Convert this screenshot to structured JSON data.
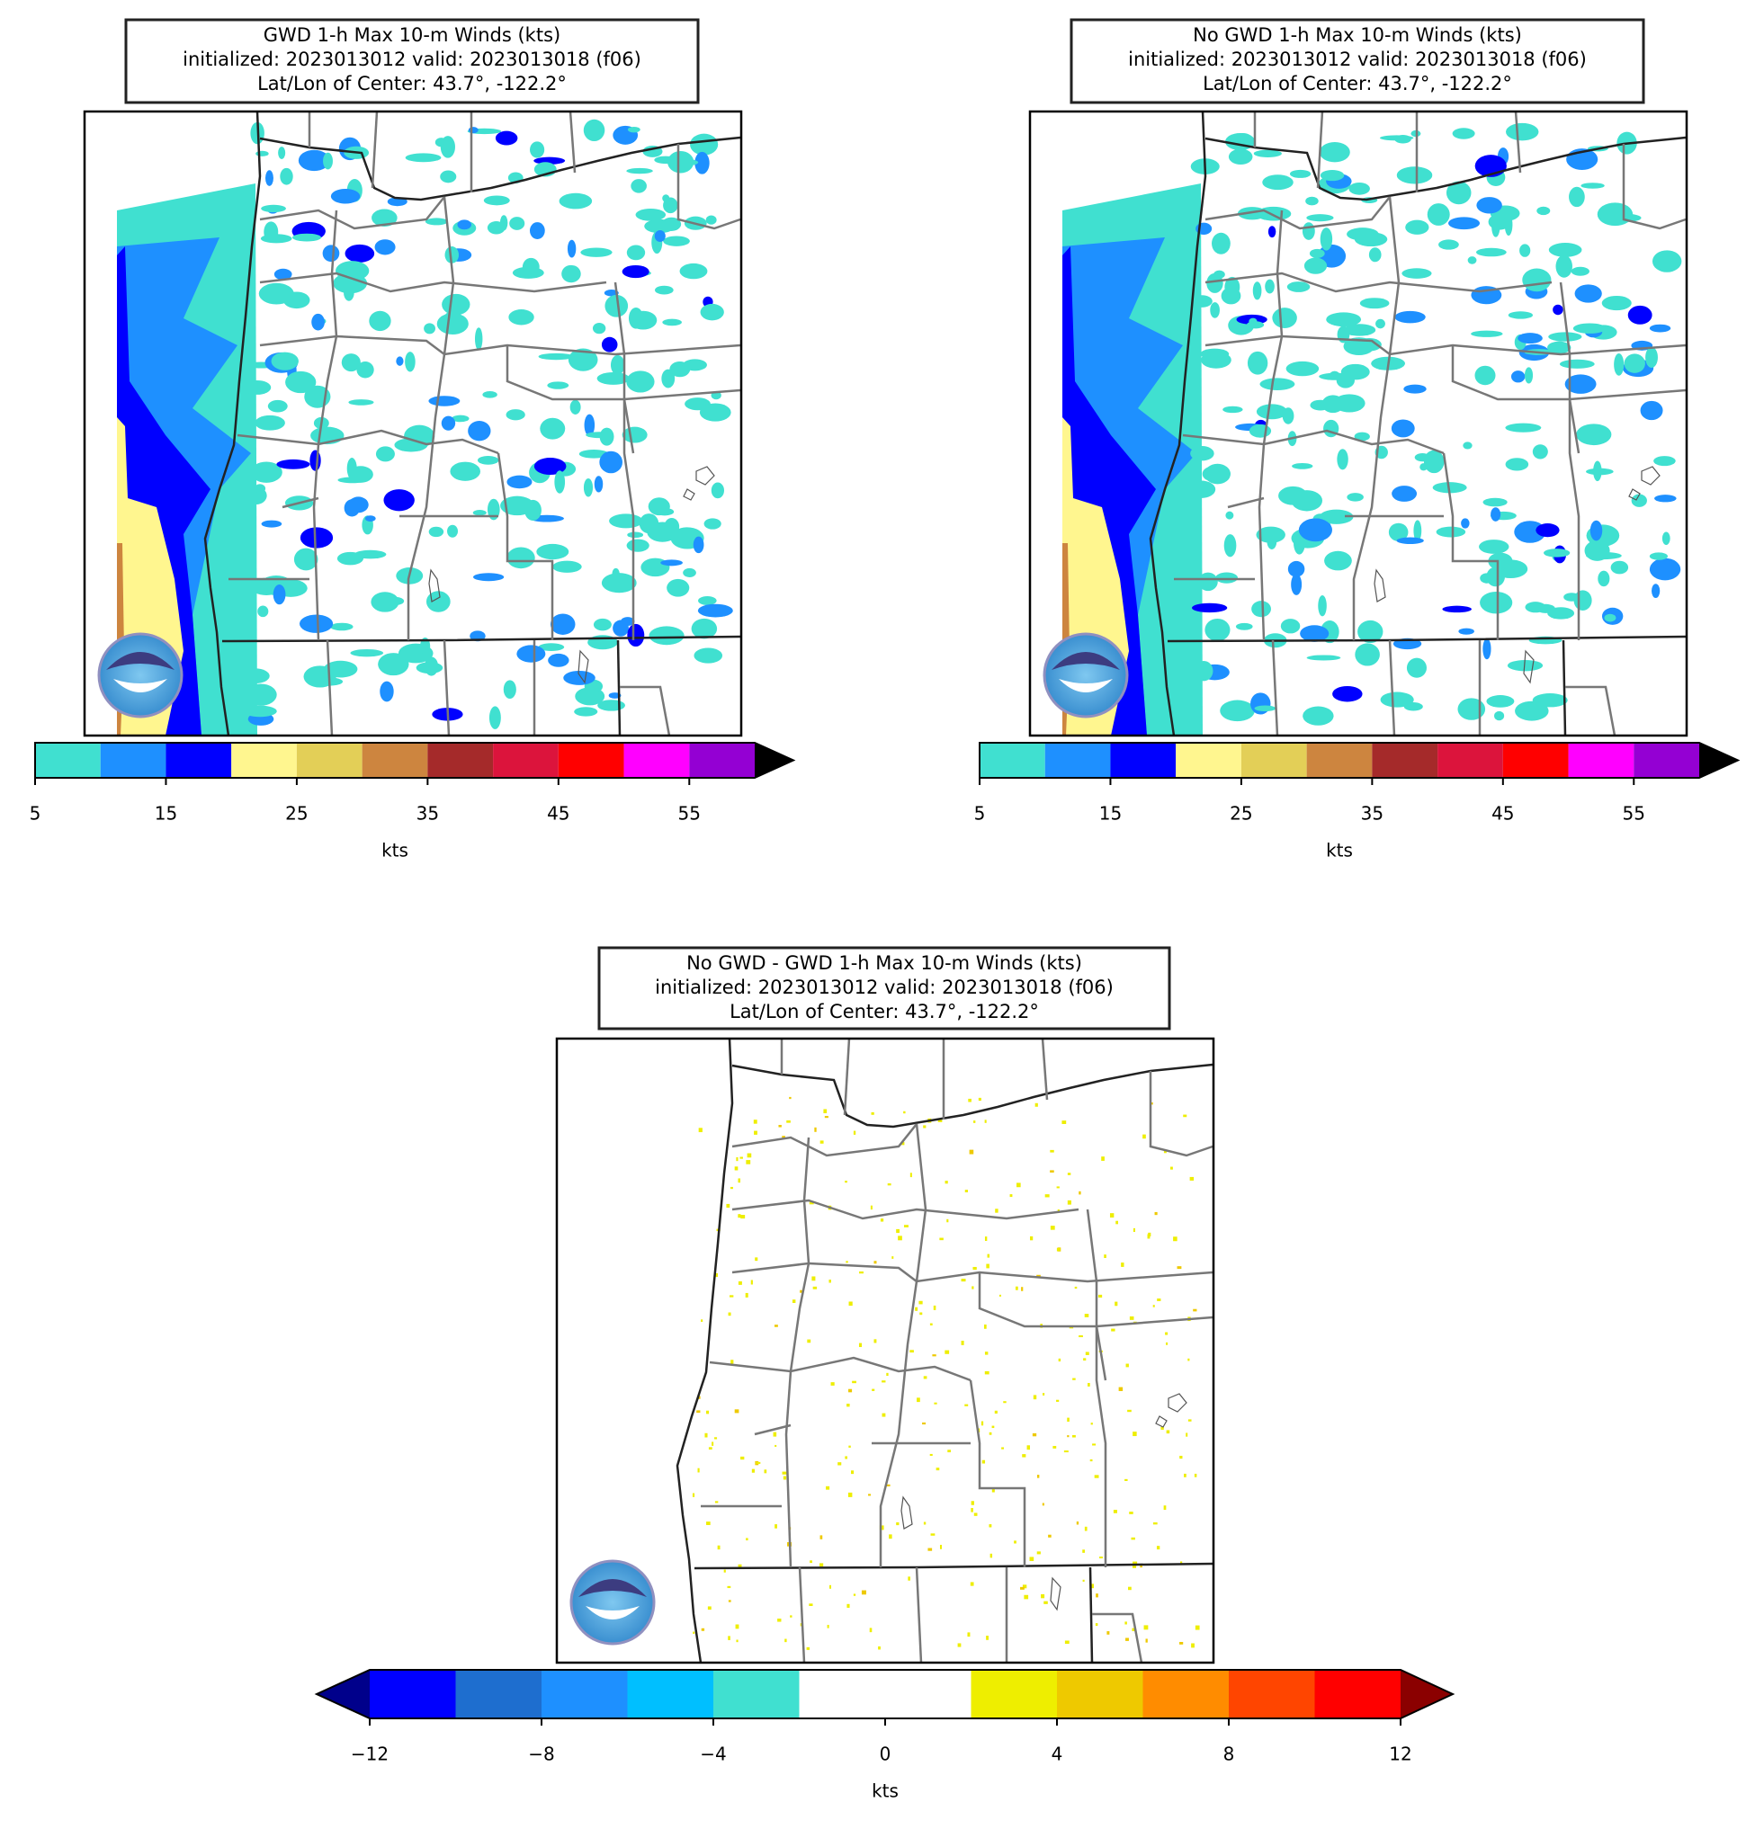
{
  "panels": [
    {
      "title": [
        "GWD 1-h Max 10-m Winds (kts)",
        "initialized: 2023013012 valid: 2023013018 (f06)",
        "Lat/Lon of Center: 43.7°, -122.2°"
      ],
      "colorbar": {
        "label": "kts",
        "lim": [
          5,
          60
        ],
        "bounds": [
          5,
          10,
          15,
          20,
          25,
          30,
          35,
          40,
          45,
          50,
          55,
          60
        ],
        "colors": [
          "#40e0d0",
          "#1e90ff",
          "#0000ff",
          "#fff68f",
          "#e3cf57",
          "#cd853f",
          "#a52a2a",
          "#dc143c",
          "#ff0000",
          "#ff00ff",
          "#9400d3"
        ],
        "over_color": "#000000",
        "ticks": [
          5,
          15,
          25,
          35,
          45,
          55
        ]
      }
    },
    {
      "title": [
        "No GWD 1-h Max 10-m Winds (kts)",
        "initialized: 2023013012 valid: 2023013018 (f06)",
        "Lat/Lon of Center: 43.7°, -122.2°"
      ],
      "colorbar": {
        "label": "kts",
        "lim": [
          5,
          60
        ],
        "bounds": [
          5,
          10,
          15,
          20,
          25,
          30,
          35,
          40,
          45,
          50,
          55,
          60
        ],
        "colors": [
          "#40e0d0",
          "#1e90ff",
          "#0000ff",
          "#fff68f",
          "#e3cf57",
          "#cd853f",
          "#a52a2a",
          "#dc143c",
          "#ff0000",
          "#ff00ff",
          "#9400d3"
        ],
        "over_color": "#000000",
        "ticks": [
          5,
          15,
          25,
          35,
          45,
          55
        ]
      }
    },
    {
      "title": [
        "No GWD - GWD 1-h Max 10-m Winds (kts)",
        "initialized: 2023013012 valid: 2023013018 (f06)",
        "Lat/Lon of Center: 43.7°, -122.2°"
      ],
      "colorbar": {
        "label": "kts",
        "lim": [
          -12,
          12
        ],
        "bounds": [
          -12,
          -10,
          -8,
          -6,
          -4,
          -2,
          0,
          2,
          4,
          6,
          8,
          10,
          12
        ],
        "colors": [
          "#0000ff",
          "#1e6ecf",
          "#1e90ff",
          "#00bfff",
          "#40e0d0",
          "#ffffff",
          "#ffffff",
          "#eeee00",
          "#eec900",
          "#ff8c00",
          "#ff4500",
          "#ff0000"
        ],
        "under_color": "#00008b",
        "over_color": "#8b0000",
        "ticks": [
          {
            "value": -12,
            "label": "−12"
          },
          {
            "value": -8,
            "label": "−8"
          },
          {
            "value": -4,
            "label": "−4"
          },
          0,
          4,
          8,
          12
        ]
      }
    }
  ]
}
